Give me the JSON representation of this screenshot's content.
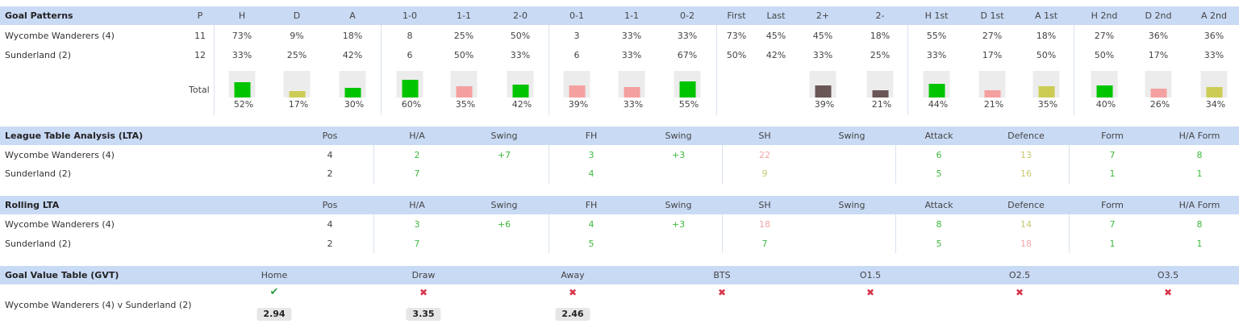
{
  "goal_patterns": {
    "title": "Goal Patterns",
    "headers": [
      "P",
      "H",
      "D",
      "A",
      "1-0",
      "1-1",
      "2-0",
      "0-1",
      "1-1",
      "0-2",
      "First",
      "Last",
      "2+",
      "2-",
      "H 1st",
      "D 1st",
      "A 1st",
      "H 2nd",
      "D 2nd",
      "A 2nd"
    ],
    "rows": [
      {
        "team": "Wycombe Wanderers (4)",
        "values": [
          "11",
          "73%",
          "9%",
          "18%",
          "8",
          "25%",
          "50%",
          "3",
          "33%",
          "33%",
          "73%",
          "45%",
          "45%",
          "18%",
          "55%",
          "27%",
          "18%",
          "27%",
          "36%",
          "36%"
        ]
      },
      {
        "team": "Sunderland (2)",
        "values": [
          "12",
          "33%",
          "25%",
          "42%",
          "6",
          "50%",
          "33%",
          "6",
          "33%",
          "67%",
          "50%",
          "42%",
          "33%",
          "25%",
          "33%",
          "17%",
          "50%",
          "50%",
          "17%",
          "33%"
        ]
      }
    ],
    "total_label": "Total",
    "totals": [
      {
        "col": "H",
        "pct": "52%",
        "value": 52,
        "color": "#00c400"
      },
      {
        "col": "D",
        "pct": "17%",
        "value": 17,
        "color": "#cccc55"
      },
      {
        "col": "A",
        "pct": "30%",
        "value": 30,
        "color": "#00c400"
      },
      {
        "col": "1-0",
        "pct": "60%",
        "value": 60,
        "color": "#00c400"
      },
      {
        "col": "1-1",
        "pct": "35%",
        "value": 35,
        "color": "#f5a0a0"
      },
      {
        "col": "2-0",
        "pct": "42%",
        "value": 42,
        "color": "#00c400"
      },
      {
        "col": "0-1",
        "pct": "39%",
        "value": 39,
        "color": "#f5a0a0"
      },
      {
        "col": "1-1",
        "pct": "33%",
        "value": 33,
        "color": "#f5a0a0"
      },
      {
        "col": "0-2",
        "pct": "55%",
        "value": 55,
        "color": "#00c400"
      },
      {
        "col": "2+",
        "pct": "39%",
        "value": 39,
        "color": "#6b5656"
      },
      {
        "col": "2-",
        "pct": "21%",
        "value": 21,
        "color": "#6b5656"
      },
      {
        "col": "H 1st",
        "pct": "44%",
        "value": 44,
        "color": "#00c400"
      },
      {
        "col": "D 1st",
        "pct": "21%",
        "value": 21,
        "color": "#f5a0a0"
      },
      {
        "col": "A 1st",
        "pct": "35%",
        "value": 35,
        "color": "#cccc55"
      },
      {
        "col": "H 2nd",
        "pct": "40%",
        "value": 40,
        "color": "#00c400"
      },
      {
        "col": "D 2nd",
        "pct": "26%",
        "value": 26,
        "color": "#f5a0a0"
      },
      {
        "col": "A 2nd",
        "pct": "34%",
        "value": 34,
        "color": "#cccc55"
      }
    ]
  },
  "lta": {
    "title": "League Table Analysis (LTA)",
    "headers": [
      "Pos",
      "H/A",
      "Swing",
      "FH",
      "Swing",
      "SH",
      "Swing",
      "Attack",
      "Defence",
      "Form",
      "H/A Form"
    ],
    "rows": [
      {
        "team": "Wycombe Wanderers (4)",
        "values": [
          "4",
          "2",
          "+7",
          "3",
          "+3",
          "22",
          "",
          "6",
          "13",
          "7",
          "8"
        ]
      },
      {
        "team": "Sunderland (2)",
        "values": [
          "2",
          "7",
          "",
          "4",
          "",
          "9",
          "",
          "5",
          "16",
          "1",
          "1"
        ]
      }
    ]
  },
  "rolling_lta": {
    "title": "Rolling LTA",
    "headers": [
      "Pos",
      "H/A",
      "Swing",
      "FH",
      "Swing",
      "SH",
      "Swing",
      "Attack",
      "Defence",
      "Form",
      "H/A Form"
    ],
    "rows": [
      {
        "team": "Wycombe Wanderers (4)",
        "values": [
          "4",
          "3",
          "+6",
          "4",
          "+3",
          "18",
          "",
          "8",
          "14",
          "7",
          "8"
        ]
      },
      {
        "team": "Sunderland (2)",
        "values": [
          "2",
          "7",
          "",
          "5",
          "",
          "7",
          "",
          "5",
          "18",
          "1",
          "1"
        ]
      }
    ]
  },
  "gvt": {
    "title": "Goal Value Table (GVT)",
    "headers": [
      "Home",
      "Draw",
      "Away",
      "BTS",
      "O1.5",
      "O2.5",
      "O3.5"
    ],
    "match": "Wycombe Wanderers (4) v Sunderland (2)",
    "results": [
      "check-icon",
      "cross-icon",
      "cross-icon",
      "cross-icon",
      "cross-icon",
      "cross-icon",
      "cross-icon"
    ],
    "odds": [
      "2.94",
      "3.35",
      "2.46"
    ],
    "check_glyph": "✔",
    "cross_glyph": "✖"
  },
  "colors": {
    "header_band": "#c9daf5",
    "green_bar": "#00c400",
    "pink_bar": "#f5a0a0",
    "yellow_bar": "#cccc55",
    "brown_bar": "#6b5656",
    "good_text": "#3fb83f",
    "bad_text": "#f0a8a8",
    "mid_text": "#c8c870"
  }
}
